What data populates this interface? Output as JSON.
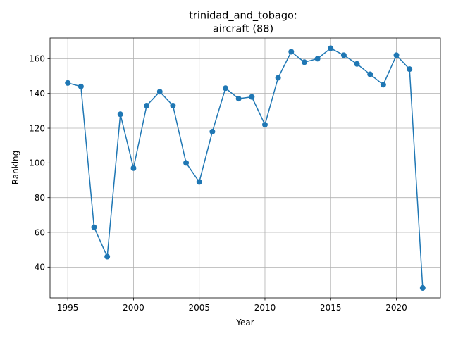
{
  "chart_data": {
    "type": "line",
    "title_line1": "trinidad_and_tobago:",
    "title_line2": "aircraft (88)",
    "xlabel": "Year",
    "ylabel": "Ranking",
    "xlim": [
      1993.65,
      2023.35
    ],
    "ylim": [
      22.3,
      171.9
    ],
    "x_ticks": [
      1995,
      2000,
      2005,
      2010,
      2015,
      2020
    ],
    "y_ticks": [
      40,
      60,
      80,
      100,
      120,
      140,
      160
    ],
    "grid": true,
    "color": "#1f77b4",
    "x": [
      1995,
      1996,
      1997,
      1998,
      1999,
      2000,
      2001,
      2002,
      2003,
      2004,
      2005,
      2006,
      2007,
      2008,
      2009,
      2010,
      2011,
      2012,
      2013,
      2014,
      2015,
      2016,
      2017,
      2018,
      2019,
      2020,
      2021,
      2022
    ],
    "y": [
      146,
      144,
      63,
      46,
      128,
      97,
      133,
      141,
      133,
      100,
      89,
      118,
      143,
      137,
      138,
      122,
      149,
      164,
      158,
      160,
      166,
      162,
      157,
      151,
      145,
      162,
      154,
      28
    ]
  }
}
